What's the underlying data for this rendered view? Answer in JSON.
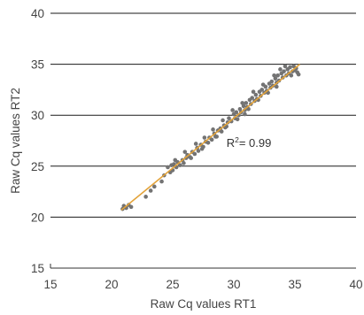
{
  "chart_data": {
    "type": "scatter",
    "xlabel": "Raw Cq values RT1",
    "ylabel": "Raw Cq values RT2",
    "xlim": [
      15,
      40
    ],
    "ylim": [
      15,
      40
    ],
    "x_ticks": [
      "15",
      "20",
      "25",
      "30",
      "35",
      "40"
    ],
    "y_ticks": [
      "15",
      "20",
      "25",
      "30",
      "35",
      "40"
    ],
    "grid": "horizontal",
    "annotation": {
      "base": "R",
      "sup": "2",
      "rest": "= 0.99",
      "x": 29.4,
      "y": 26.9
    },
    "trendline": {
      "x": [
        20.8,
        35.4
      ],
      "y": [
        20.7,
        35.0
      ],
      "color": "#e3a33a"
    },
    "colors": {
      "points": "#737373",
      "gridline": "#1a1a1a",
      "axis": "#333333"
    },
    "series": [
      {
        "points": [
          [
            20.9,
            20.8
          ],
          [
            21.0,
            21.1
          ],
          [
            21.2,
            20.9
          ],
          [
            21.4,
            21.2
          ],
          [
            21.6,
            21.0
          ],
          [
            22.8,
            22.0
          ],
          [
            23.2,
            22.6
          ],
          [
            23.5,
            23.0
          ],
          [
            24.1,
            23.5
          ],
          [
            24.3,
            24.1
          ],
          [
            24.6,
            24.9
          ],
          [
            24.8,
            24.4
          ],
          [
            25.0,
            24.6
          ],
          [
            25.1,
            25.2
          ],
          [
            25.3,
            24.9
          ],
          [
            25.4,
            25.4
          ],
          [
            25.6,
            25.1
          ],
          [
            25.8,
            25.6
          ],
          [
            25.9,
            25.3
          ],
          [
            26.1,
            25.8
          ],
          [
            26.2,
            26.1
          ],
          [
            26.4,
            25.9
          ],
          [
            26.6,
            26.4
          ],
          [
            26.8,
            26.2
          ],
          [
            27.0,
            26.8
          ],
          [
            27.1,
            26.5
          ],
          [
            27.3,
            27.1
          ],
          [
            27.5,
            26.9
          ],
          [
            27.7,
            27.4
          ],
          [
            27.9,
            27.3
          ],
          [
            28.0,
            27.8
          ],
          [
            28.2,
            27.6
          ],
          [
            28.4,
            28.2
          ],
          [
            28.5,
            27.9
          ],
          [
            28.7,
            28.5
          ],
          [
            28.9,
            28.7
          ],
          [
            29.0,
            28.4
          ],
          [
            29.2,
            29.0
          ],
          [
            29.3,
            28.8
          ],
          [
            29.5,
            29.3
          ],
          [
            29.6,
            29.7
          ],
          [
            29.8,
            29.4
          ],
          [
            30.0,
            30.1
          ],
          [
            30.1,
            29.7
          ],
          [
            30.2,
            30.3
          ],
          [
            30.4,
            30.0
          ],
          [
            30.5,
            30.6
          ],
          [
            30.6,
            30.3
          ],
          [
            30.8,
            30.9
          ],
          [
            30.9,
            30.5
          ],
          [
            31.0,
            31.2
          ],
          [
            31.1,
            30.8
          ],
          [
            31.3,
            31.5
          ],
          [
            31.4,
            31.1
          ],
          [
            31.5,
            31.7
          ],
          [
            31.7,
            31.4
          ],
          [
            31.8,
            32.0
          ],
          [
            31.9,
            31.6
          ],
          [
            32.1,
            32.3
          ],
          [
            32.2,
            31.9
          ],
          [
            32.3,
            32.5
          ],
          [
            32.5,
            32.2
          ],
          [
            32.6,
            32.8
          ],
          [
            32.7,
            32.4
          ],
          [
            32.9,
            33.1
          ],
          [
            33.0,
            32.7
          ],
          [
            33.1,
            33.3
          ],
          [
            33.2,
            32.9
          ],
          [
            33.4,
            33.6
          ],
          [
            33.5,
            33.2
          ],
          [
            33.6,
            33.9
          ],
          [
            33.7,
            33.4
          ],
          [
            33.9,
            34.1
          ],
          [
            34.0,
            33.7
          ],
          [
            34.1,
            34.3
          ],
          [
            34.3,
            33.9
          ],
          [
            34.4,
            34.5
          ],
          [
            34.5,
            34.1
          ],
          [
            34.6,
            34.7
          ],
          [
            34.8,
            34.3
          ],
          [
            34.9,
            34.8
          ],
          [
            35.0,
            34.4
          ],
          [
            35.1,
            34.6
          ],
          [
            35.2,
            34.2
          ],
          [
            35.3,
            34.0
          ],
          [
            34.2,
            34.8
          ],
          [
            33.8,
            34.5
          ],
          [
            33.3,
            33.9
          ],
          [
            32.4,
            33.0
          ],
          [
            31.6,
            32.3
          ],
          [
            30.7,
            31.2
          ],
          [
            29.9,
            30.5
          ],
          [
            29.1,
            29.5
          ],
          [
            28.3,
            28.6
          ],
          [
            27.6,
            27.8
          ],
          [
            26.9,
            27.2
          ],
          [
            26.0,
            26.4
          ],
          [
            25.2,
            25.6
          ],
          [
            24.9,
            25.1
          ],
          [
            30.3,
            29.6
          ],
          [
            31.2,
            30.6
          ],
          [
            32.0,
            31.5
          ],
          [
            32.8,
            32.2
          ],
          [
            33.5,
            32.8
          ],
          [
            34.7,
            33.9
          ],
          [
            28.6,
            27.9
          ],
          [
            27.4,
            26.7
          ],
          [
            26.5,
            25.8
          ],
          [
            29.4,
            28.9
          ],
          [
            30.9,
            30.1
          ]
        ]
      }
    ]
  }
}
